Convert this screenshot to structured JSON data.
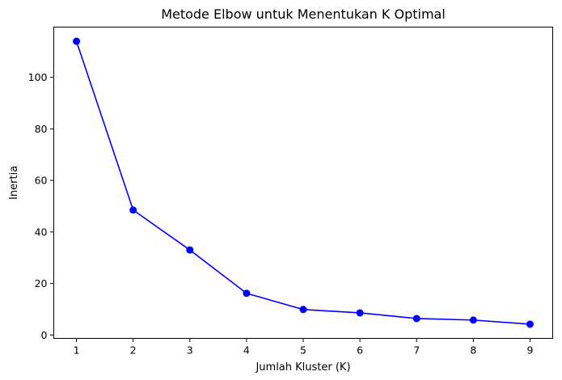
{
  "chart_data": {
    "type": "line",
    "title": "Metode Elbow untuk Menentukan K Optimal",
    "xlabel": "Jumlah Kluster (K)",
    "ylabel": "Inertia",
    "x": [
      1,
      2,
      3,
      4,
      5,
      6,
      7,
      8,
      9
    ],
    "series": [
      {
        "values": [
          114.0,
          48.5,
          33.0,
          16.2,
          9.9,
          8.6,
          6.4,
          5.8,
          4.2
        ],
        "color": "#0000ff",
        "marker": "circle"
      }
    ],
    "xticks": [
      1,
      2,
      3,
      4,
      5,
      6,
      7,
      8,
      9
    ],
    "yticks": [
      0,
      20,
      40,
      60,
      80,
      100
    ],
    "xlim": [
      0.6,
      9.4
    ],
    "ylim": [
      -1.3,
      119.5
    ],
    "grid": false,
    "legend": false
  }
}
